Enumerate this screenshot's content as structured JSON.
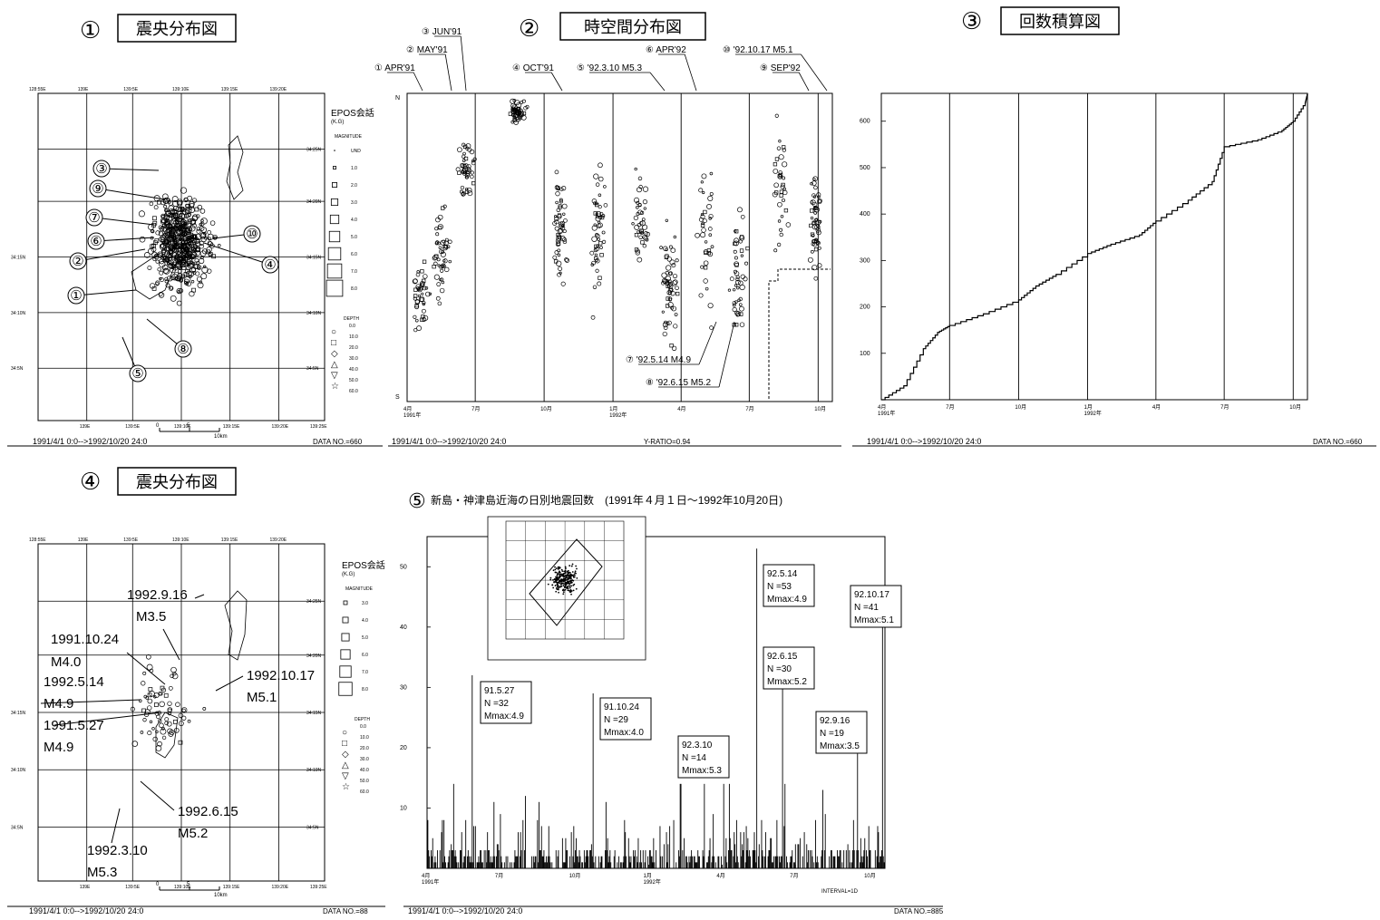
{
  "panels": [
    {
      "num": "①",
      "title": "震央分布図"
    },
    {
      "num": "②",
      "title": "時空間分布図"
    },
    {
      "num": "③",
      "title": "回数積算図"
    },
    {
      "num": "④",
      "title": "震央分布図"
    },
    {
      "num": "⑤",
      "title": "新島・神津島近海の日別地震回数　(1991年４月１日～1992年10月20日)"
    }
  ],
  "footers": {
    "f1_left": "1991/4/1 0:0-->1992/10/20 24:0",
    "f1_right": "DATA NO.=660",
    "f2_left": "1991/4/1 0:0-->1992/10/20 24:0",
    "f2_mid": "Y-RATIO=0.94",
    "f3_left": "1991/4/1 0:0-->1992/10/20 24:0",
    "f3_right": "DATA NO.=660",
    "f4_left": "1991/4/1 0:0-->1992/10/20 24:0",
    "f4_right": "DATA NO.=88",
    "f5_left": "1991/4/1 0:0-->1992/10/20 24:0",
    "f5_right": "DATA NO.=885",
    "f5_interval": "INTERVAL=1D"
  },
  "map1": {
    "lon_labels": [
      "128:55E",
      "139E",
      "139:5E",
      "139:10E",
      "139:15E",
      "139:20E",
      "139:25E"
    ],
    "lon_bottom": [
      "139E",
      "139:5E",
      "139:10E",
      "139:15E",
      "139:20E",
      "139:25E"
    ],
    "lat_labels": [
      "34:25N",
      "34:20N",
      "34:15N",
      "34:10N",
      "34:5N"
    ],
    "lat_left": [
      "34:15N",
      "34:10N",
      "34:5N"
    ],
    "circled": [
      "③",
      "⑨",
      "⑦",
      "⑥",
      "②",
      "①",
      "⑤",
      "⑧",
      "⑩",
      "④"
    ],
    "scale": {
      "zero": "0",
      "five": "5",
      "ten": "10km"
    }
  },
  "legend1": {
    "header": "EPOS会話",
    "sub": "(K.G)",
    "mag_title": "MAGNITUDE",
    "mags": [
      "UND",
      "1.0",
      "2.0",
      "3.0",
      "4.0",
      "5.0",
      "6.0",
      "7.0",
      "8.0"
    ],
    "depth_title": "DEPTH",
    "depths": [
      "0.0",
      "10.0",
      "20.0",
      "30.0",
      "40.0",
      "50.0",
      "60.0"
    ]
  },
  "st": {
    "events": [
      {
        "id": "①",
        "label": "APR'91"
      },
      {
        "id": "②",
        "label": "MAY'91"
      },
      {
        "id": "③",
        "label": "JUN'91"
      },
      {
        "id": "④",
        "label": "OCT'91"
      },
      {
        "id": "⑤",
        "label": "'92.3.10 M5.3"
      },
      {
        "id": "⑥",
        "label": "APR'92"
      },
      {
        "id": "⑩",
        "label": "'92.10.17 M5.1"
      },
      {
        "id": "⑨",
        "label": "SEP'92"
      },
      {
        "id": "⑦",
        "label": "'92.5.14 M4.9"
      },
      {
        "id": "⑧",
        "label": "'92.6.15 M5.2"
      }
    ],
    "n": "N",
    "s": "S",
    "xticks": [
      "4月\n1991年",
      "7月",
      "10月",
      "1月\n1992年",
      "4月",
      "7月",
      "10月"
    ]
  },
  "legend4": {
    "header": "EPOS会話",
    "sub": "(K.G)",
    "mag_title": "MAGNITUDE",
    "mags": [
      "3.0",
      "4.0",
      "5.0",
      "6.0",
      "7.0",
      "8.0"
    ],
    "depth_title": "DEPTH",
    "depths": [
      "0.0",
      "10.0",
      "20.0",
      "30.0",
      "40.0",
      "50.0",
      "60.0"
    ]
  },
  "map4": {
    "lon_labels": [
      "128:55E",
      "139E",
      "139:5E",
      "139:10E",
      "139:15E",
      "139:20E",
      "139:25E"
    ],
    "lon_bottom": [
      "139E",
      "139:5E",
      "139:10E",
      "139:15E",
      "139:20E",
      "139:25E"
    ],
    "lat_labels": [
      "34:25N",
      "34:20N",
      "34:15N",
      "34:10N",
      "34:5N"
    ],
    "lat_left": [
      "34:15N",
      "34:10N",
      "34:5N"
    ],
    "annotations": [
      "1992.9.16",
      "M3.5",
      "1991.10.24",
      "M4.0",
      "1992.5.14",
      "M4.9",
      "1991.5.27",
      "M4.9",
      "1992.10.17",
      "M5.1",
      "1992.6.15",
      "M5.2",
      "1992.3.10",
      "M5.3"
    ],
    "scale": {
      "zero": "0",
      "five": "5",
      "ten": "10km"
    }
  },
  "chart_data": [
    {
      "type": "line",
      "name": "回数積算図",
      "x": [
        "1991-04-01",
        "1991-05-01",
        "1991-05-27",
        "1991-06-15",
        "1991-07-01",
        "1991-08-15",
        "1991-10-01",
        "1991-10-24",
        "1991-11-20",
        "1992-01-01",
        "1992-02-01",
        "1992-03-10",
        "1992-04-01",
        "1992-05-14",
        "1992-06-15",
        "1992-07-01",
        "1992-08-15",
        "1992-09-16",
        "1992-10-01",
        "1992-10-17",
        "1992-10-20"
      ],
      "y": [
        0,
        30,
        110,
        145,
        160,
        185,
        215,
        245,
        270,
        315,
        335,
        355,
        385,
        430,
        470,
        545,
        560,
        580,
        600,
        640,
        660
      ],
      "xticks": [
        "4月\n1991年",
        "7月",
        "10月",
        "1月\n1992年",
        "4月",
        "7月",
        "10月"
      ],
      "yticks": [
        100,
        200,
        300,
        400,
        500,
        600
      ],
      "ylim": [
        0,
        660
      ]
    },
    {
      "type": "bar",
      "name": "日別地震回数",
      "xticks": [
        "4月\n1991年",
        "7月",
        "10月",
        "1月\n1992年",
        "4月",
        "7月",
        "10月"
      ],
      "yticks": [
        10,
        20,
        30,
        40,
        50
      ],
      "ylim": [
        0,
        55
      ],
      "peaks": [
        {
          "date": "1991-05-27",
          "value": 32,
          "label": "91.5.27",
          "n": "N =32",
          "m": "Mmax:4.9"
        },
        {
          "date": "1991-10-24",
          "value": 29,
          "label": "91.10.24",
          "n": "N =29",
          "m": "Mmax:4.0"
        },
        {
          "date": "1992-03-10",
          "value": 14,
          "label": "92.3.10",
          "n": "N =14",
          "m": "Mmax:5.3"
        },
        {
          "date": "1992-05-14",
          "value": 53,
          "label": "92.5.14",
          "n": "N =53",
          "m": "Mmax:4.9"
        },
        {
          "date": "1992-06-15",
          "value": 30,
          "label": "92.6.15",
          "n": "N =30",
          "m": "Mmax:5.2"
        },
        {
          "date": "1992-09-16",
          "value": 19,
          "label": "92.9.16",
          "n": "N =19",
          "m": "Mmax:3.5"
        },
        {
          "date": "1992-10-17",
          "value": 41,
          "label": "92.10.17",
          "n": "N =41",
          "m": "Mmax:5.1"
        }
      ]
    }
  ]
}
